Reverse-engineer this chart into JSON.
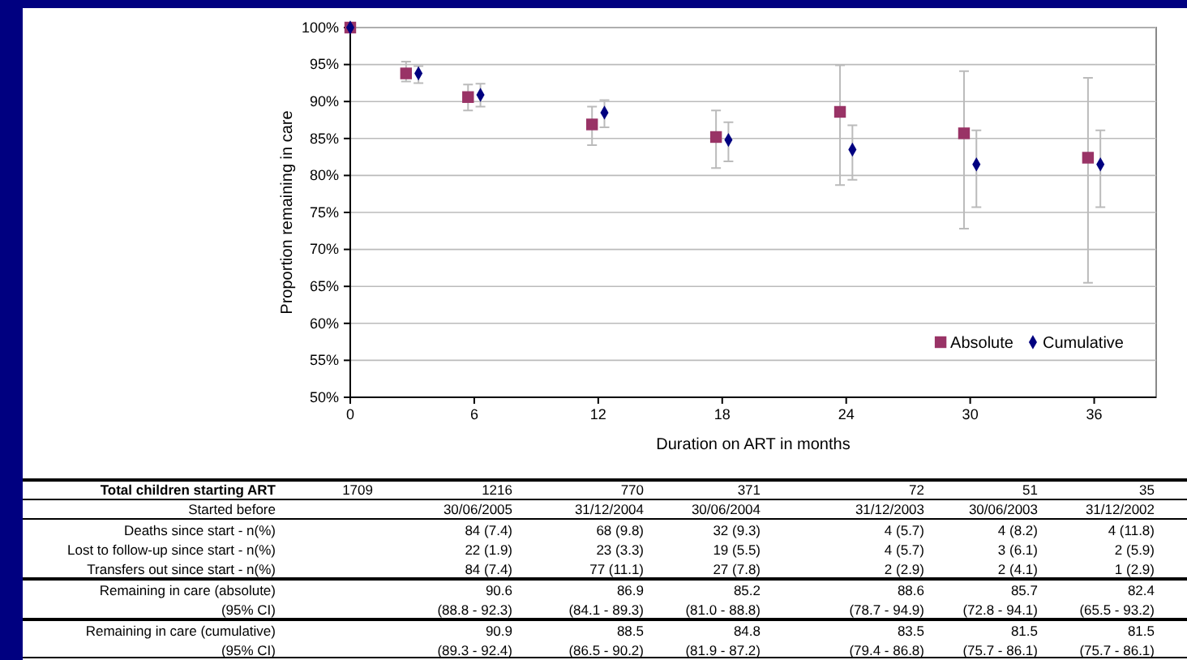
{
  "chart_data": {
    "type": "scatter",
    "xlabel": "Duration on ART in months",
    "ylabel": "Proportion remaining in care",
    "xlim": [
      0,
      39
    ],
    "xticks": [
      0,
      6,
      12,
      18,
      24,
      30,
      36
    ],
    "ylim": [
      50,
      100
    ],
    "yticks": [
      {
        "value": 50,
        "label": "50%"
      },
      {
        "value": 55,
        "label": "55%"
      },
      {
        "value": 60,
        "label": "60%"
      },
      {
        "value": 65,
        "label": "65%"
      },
      {
        "value": 70,
        "label": "70%"
      },
      {
        "value": 75,
        "label": "75%"
      },
      {
        "value": 80,
        "label": "80%"
      },
      {
        "value": 85,
        "label": "85%"
      },
      {
        "value": 90,
        "label": "90%"
      },
      {
        "value": 95,
        "label": "95%"
      },
      {
        "value": 100,
        "label": "100%"
      }
    ],
    "grid": "y",
    "legend": "bottom right",
    "series": [
      {
        "name": "Absolute",
        "color": "#993366",
        "marker": "square",
        "x": [
          0,
          2.7,
          5.7,
          11.7,
          17.7,
          23.7,
          29.7,
          35.7
        ],
        "values": [
          100,
          93.8,
          90.6,
          86.9,
          85.2,
          88.6,
          85.7,
          82.4
        ],
        "errors": [
          null,
          [
            92.7,
            95.4
          ],
          [
            88.8,
            92.3
          ],
          [
            84.1,
            89.3
          ],
          [
            81.0,
            88.8
          ],
          [
            78.7,
            94.9
          ],
          [
            72.8,
            94.1
          ],
          [
            65.5,
            93.2
          ]
        ]
      },
      {
        "name": "Cumulative",
        "color": "#000080",
        "marker": "diamond",
        "x": [
          0,
          3.3,
          6.3,
          12.3,
          18.3,
          24.3,
          30.3,
          36.3
        ],
        "values": [
          100,
          93.8,
          90.9,
          88.5,
          84.8,
          83.5,
          81.5,
          81.5
        ],
        "errors": [
          null,
          [
            92.5,
            94.8
          ],
          [
            89.3,
            92.4
          ],
          [
            86.5,
            90.2
          ],
          [
            81.9,
            87.2
          ],
          [
            79.4,
            86.8
          ],
          [
            75.7,
            86.1
          ],
          [
            75.7,
            86.1
          ]
        ]
      }
    ],
    "annotations": [
      "Total children starting ART",
      "1709",
      "1216",
      "770",
      "371",
      "72",
      "51",
      "35",
      "Started before",
      "30/06/2005",
      "31/12/2004",
      "30/06/2004",
      "31/12/2003",
      "30/06/2003",
      "31/12/2002",
      "Deaths since start - n(%)",
      "84 (7.4)",
      "68 (9.8)",
      "32 (9.3)",
      "4 (5.7)",
      "4 (8.2)",
      "4 (11.8)",
      "Lost to follow-up since start - n(%)",
      "22 (1.9)",
      "23 (3.3)",
      "19 (5.5)",
      "4 (5.7)",
      "3 (6.1)",
      "2 (5.9)",
      "Transfers out since start - n(%)",
      "84 (7.4)",
      "77 (11.1)",
      "27 (7.8)",
      "2 (2.9)",
      "2 (4.1)",
      "1 (2.9)",
      "Remaining in care (absolute)",
      "90.6",
      "86.9",
      "85.2",
      "88.6",
      "85.7",
      "82.4",
      "(95% CI)",
      "(88.8 - 92.3)",
      "(84.1 - 89.3)",
      "(81.0 - 88.8)",
      "(78.7 - 94.9)",
      "(72.8 - 94.1)",
      "(65.5 - 93.2)",
      "Remaining in care (cumulative)",
      "90.9",
      "88.5",
      "84.8",
      "83.5",
      "81.5",
      "81.5",
      "(95% CI)",
      "(89.3 - 92.4)",
      "(86.5 - 90.2)",
      "(81.9 - 87.2)",
      "(79.4 - 86.8)",
      "(75.7 - 86.1)",
      "(75.7 - 86.1)"
    ]
  }
}
